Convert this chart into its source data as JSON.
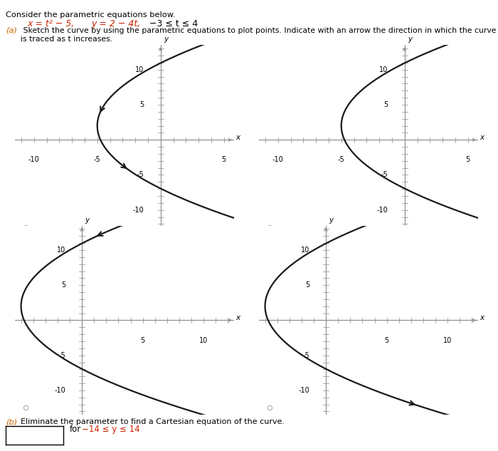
{
  "title_text": "Consider the parametric equations below.",
  "eq_text": "    x = t² − 5,   y = 2 − 4t,   −3 ≤ t ≤ 4",
  "part_a_label": "(a)",
  "part_a_rest": " Sketch the curve by using the parametric equations to plot points. Indicate with an arrow the direction in which the curve is traced as t increases.",
  "part_b_text": "(b) Eliminate the parameter to find a Cartesian equation of the curve.",
  "part_b_range": "for −14 ≤ y ≤ 14",
  "t_min": -3,
  "t_max": 4,
  "bg_color": "#ffffff",
  "curve_color": "#1a1a1a",
  "axis_color": "#888888",
  "text_color": "#000000",
  "red_color": "#cc2200",
  "orange_color": "#dd6600",
  "plots": [
    {
      "xlim": [
        -11.5,
        5.8
      ],
      "ylim": [
        -13.5,
        13.5
      ],
      "xticks": [
        -10,
        -5
      ],
      "x5tick": 5,
      "yticks": [
        -10,
        -5,
        5,
        10
      ],
      "arrow_t": -0.5,
      "arrow2_t": 1.5,
      "use_arrow2": true
    },
    {
      "xlim": [
        -11.5,
        5.8
      ],
      "ylim": [
        -13.5,
        13.5
      ],
      "xticks": [
        -10,
        -5
      ],
      "x5tick": 5,
      "yticks": [
        -10,
        -5,
        5,
        10
      ],
      "arrow_t": 3.5,
      "arrow2_t": null,
      "use_arrow2": false
    },
    {
      "xlim": [
        -5.5,
        12.5
      ],
      "ylim": [
        -13.5,
        13.5
      ],
      "xticks": [
        5,
        10
      ],
      "x5tick": null,
      "yticks": [
        -10,
        -5,
        5,
        10
      ],
      "arrow_t": -2.5,
      "arrow2_t": null,
      "use_arrow2": false
    },
    {
      "xlim": [
        -5.5,
        12.5
      ],
      "ylim": [
        -13.5,
        13.5
      ],
      "xticks": [
        5,
        10
      ],
      "x5tick": null,
      "yticks": [
        -10,
        -5,
        5,
        10
      ],
      "arrow_t": 3.5,
      "arrow2_t": null,
      "use_arrow2": false
    }
  ]
}
